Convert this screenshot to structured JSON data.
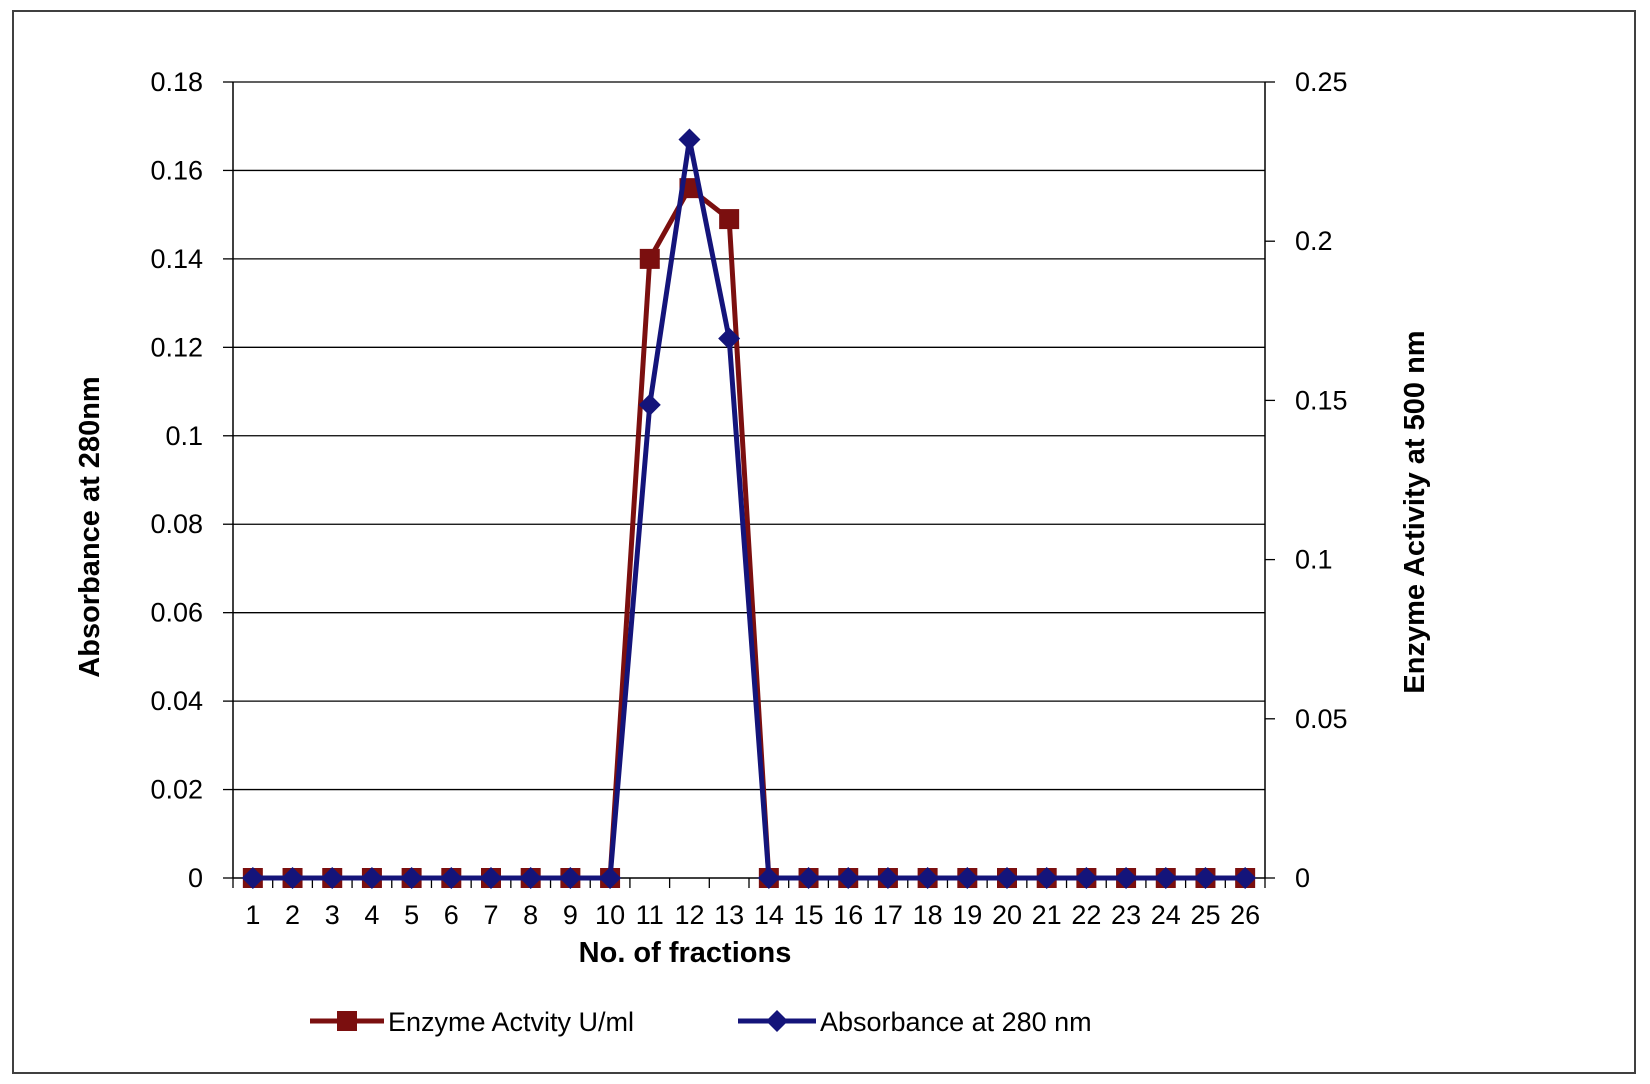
{
  "chart_data": {
    "type": "line",
    "title": "",
    "xlabel": "No. of fractions",
    "ylabel_left": "Absorbance at 280nm",
    "ylabel_right": "Enzyme Activity at 500 nm",
    "categories": [
      "1",
      "2",
      "3",
      "4",
      "5",
      "6",
      "7",
      "8",
      "9",
      "10",
      "11",
      "12",
      "13",
      "14",
      "15",
      "16",
      "17",
      "18",
      "19",
      "20",
      "21",
      "22",
      "23",
      "24",
      "25",
      "26"
    ],
    "y_left": {
      "min": 0,
      "max": 0.18,
      "ticks": [
        "0",
        "0.02",
        "0.04",
        "0.06",
        "0.08",
        "0.1",
        "0.12",
        "0.14",
        "0.16",
        "0.18"
      ]
    },
    "y_right": {
      "min": 0,
      "max": 0.25,
      "ticks": [
        "0",
        "0.05",
        "0.1",
        "0.15",
        "0.2",
        "0.25"
      ]
    },
    "grid": "horizontal",
    "legend_position": "bottom",
    "series": [
      {
        "name": "Enzyme Actvity U/ml",
        "axis": "left",
        "marker": "square",
        "color": "#7b0f0f",
        "values": [
          0,
          0,
          0,
          0,
          0,
          0,
          0,
          0,
          0,
          0,
          0.14,
          0.156,
          0.149,
          0,
          0,
          0,
          0,
          0,
          0,
          0,
          0,
          0,
          0,
          0,
          0,
          0
        ]
      },
      {
        "name": "Absorbance at 280 nm",
        "axis": "left",
        "marker": "diamond",
        "color": "#14147a",
        "values": [
          0,
          0,
          0,
          0,
          0,
          0,
          0,
          0,
          0,
          0,
          0.107,
          0.167,
          0.122,
          0,
          0,
          0,
          0,
          0,
          0,
          0,
          0,
          0,
          0,
          0,
          0,
          0
        ]
      }
    ]
  }
}
